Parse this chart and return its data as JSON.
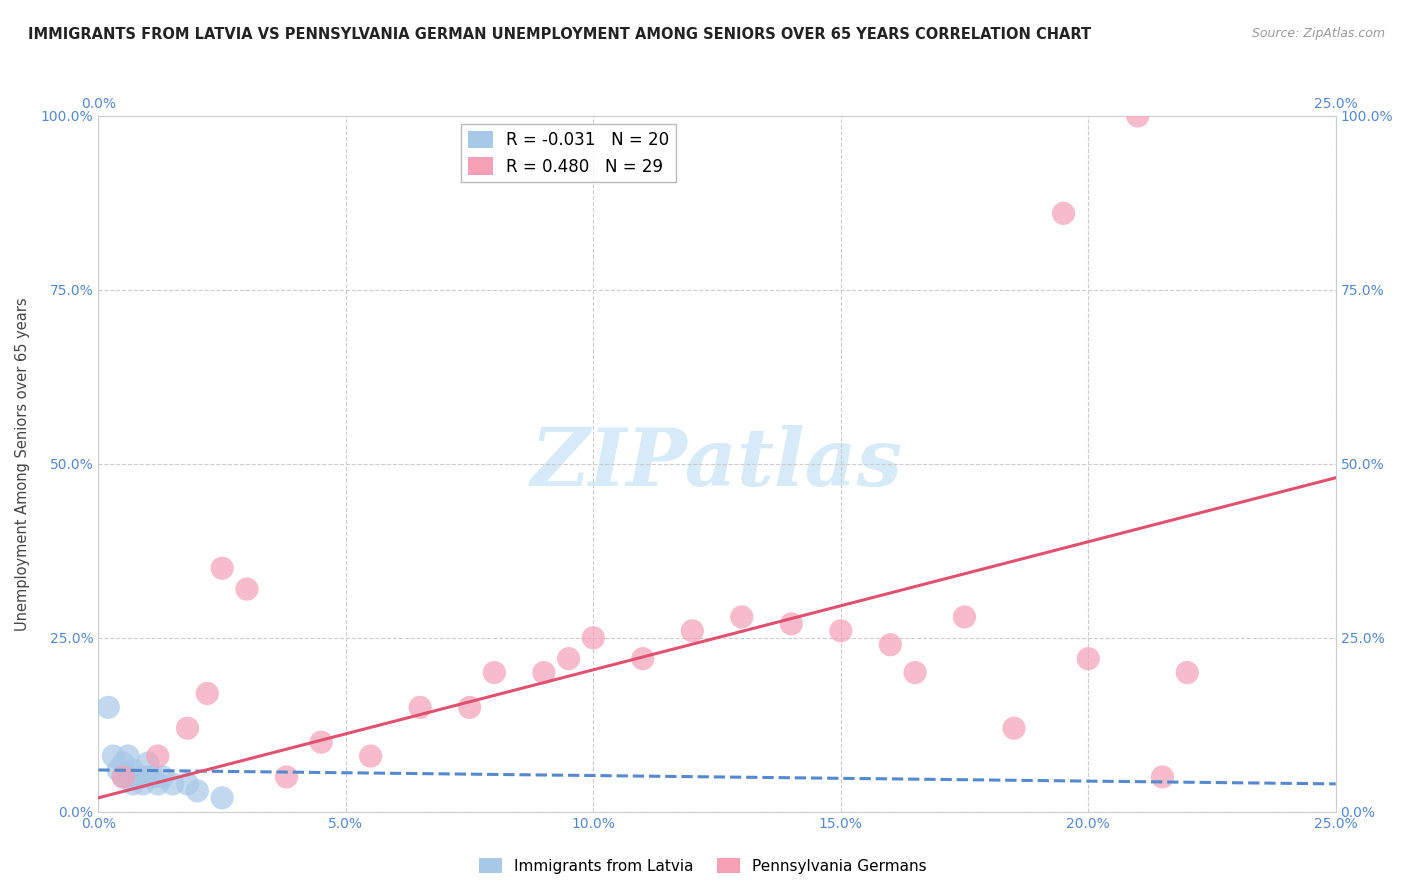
{
  "title": "IMMIGRANTS FROM LATVIA VS PENNSYLVANIA GERMAN UNEMPLOYMENT AMONG SENIORS OVER 65 YEARS CORRELATION CHART",
  "source": "Source: ZipAtlas.com",
  "ylabel": "Unemployment Among Seniors over 65 years",
  "xlim": [
    0.0,
    0.25
  ],
  "ylim": [
    0.0,
    1.0
  ],
  "xticks": [
    0.0,
    0.05,
    0.1,
    0.15,
    0.2,
    0.25
  ],
  "yticks": [
    0.0,
    0.25,
    0.5,
    0.75,
    1.0
  ],
  "xticklabels_bottom": [
    "0.0%",
    "5.0%",
    "10.0%",
    "15.0%",
    "20.0%",
    "25.0%"
  ],
  "xticklabels_top": [
    "0.0%",
    "25.0%"
  ],
  "yticklabels_left": [
    "0.0%",
    "25.0%",
    "50.0%",
    "75.0%",
    "100.0%"
  ],
  "yticklabels_right": [
    "0.0%",
    "25.0%",
    "50.0%",
    "75.0%",
    "100.0%"
  ],
  "legend_entries": [
    {
      "label": "Immigrants from Latvia",
      "color": "#a8c8e8",
      "R": "-0.031",
      "N": "20"
    },
    {
      "label": "Pennsylvania Germans",
      "color": "#f4a0b5",
      "R": "0.480",
      "N": "29"
    }
  ],
  "blue_scatter_x": [
    0.002,
    0.003,
    0.004,
    0.005,
    0.005,
    0.006,
    0.006,
    0.007,
    0.007,
    0.008,
    0.009,
    0.01,
    0.01,
    0.011,
    0.012,
    0.013,
    0.015,
    0.018,
    0.02,
    0.025
  ],
  "blue_scatter_y": [
    0.15,
    0.08,
    0.06,
    0.05,
    0.07,
    0.05,
    0.08,
    0.04,
    0.06,
    0.05,
    0.04,
    0.05,
    0.07,
    0.05,
    0.04,
    0.05,
    0.04,
    0.04,
    0.03,
    0.02
  ],
  "pink_scatter_x": [
    0.005,
    0.012,
    0.018,
    0.022,
    0.025,
    0.03,
    0.038,
    0.045,
    0.055,
    0.065,
    0.075,
    0.08,
    0.09,
    0.095,
    0.1,
    0.11,
    0.12,
    0.13,
    0.14,
    0.15,
    0.16,
    0.165,
    0.175,
    0.185,
    0.195,
    0.2,
    0.21,
    0.215,
    0.22
  ],
  "pink_scatter_y": [
    0.05,
    0.08,
    0.12,
    0.17,
    0.35,
    0.32,
    0.05,
    0.1,
    0.08,
    0.15,
    0.15,
    0.2,
    0.2,
    0.22,
    0.25,
    0.22,
    0.26,
    0.28,
    0.27,
    0.26,
    0.24,
    0.2,
    0.28,
    0.12,
    0.86,
    0.22,
    1.0,
    0.05,
    0.2
  ],
  "blue_line_x": [
    0.0,
    0.25
  ],
  "blue_line_y": [
    0.06,
    0.04
  ],
  "pink_line_x": [
    0.0,
    0.25
  ],
  "pink_line_y": [
    0.02,
    0.48
  ],
  "background_color": "#ffffff",
  "grid_color": "#cccccc",
  "watermark": "ZIPatlas",
  "watermark_color": "#d6eaf8"
}
